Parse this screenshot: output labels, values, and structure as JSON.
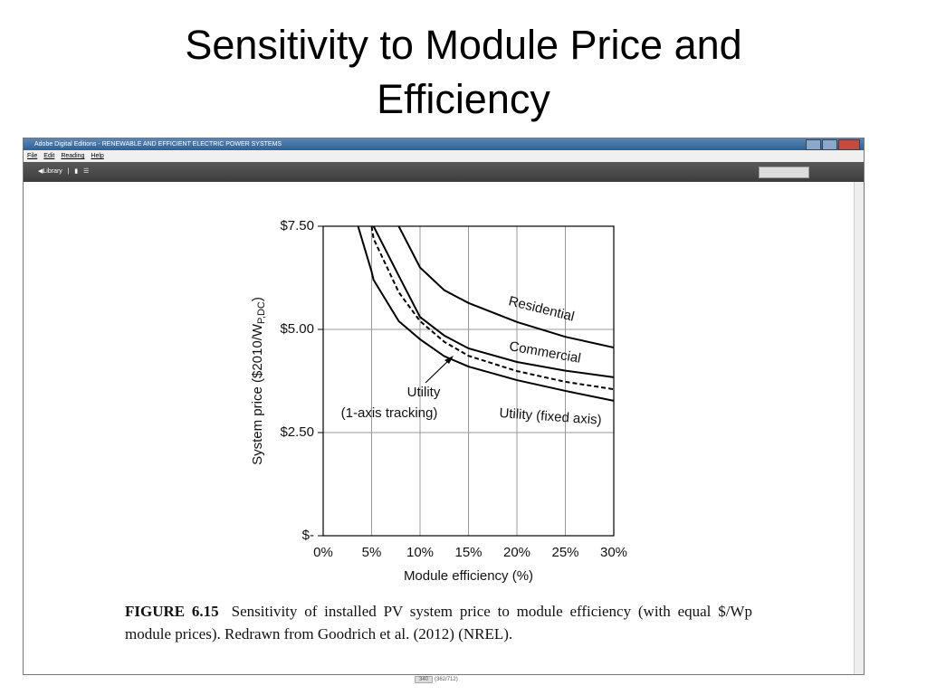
{
  "slide": {
    "title": "Sensitivity to Module Price and Efficiency"
  },
  "window": {
    "title": "Adobe Digital Editions - RENEWABLE AND EFFICIENT ELECTRIC POWER SYSTEMS",
    "menu": [
      "File",
      "Edit",
      "Reading",
      "Help"
    ],
    "library": "Library",
    "page_indicator": "340",
    "page_count": "(362/712)"
  },
  "chart_data": {
    "type": "line",
    "xlabel": "Module efficiency (%)",
    "ylabel": {
      "text": "System price ($2010/W",
      "sub": "P,DC",
      "end": ")"
    },
    "x": [
      3.6,
      5,
      5.2,
      7.8,
      10,
      12.5,
      15,
      20,
      25,
      30
    ],
    "series": [
      {
        "name": "Residential",
        "color": "#000000",
        "values": [
          null,
          null,
          null,
          7.5,
          6.5,
          5.95,
          5.64,
          5.18,
          4.82,
          4.56
        ]
      },
      {
        "name": "Commercial",
        "color": "#000000",
        "values": [
          null,
          null,
          7.5,
          6.3,
          5.3,
          4.85,
          4.54,
          4.21,
          4.0,
          3.84
        ]
      },
      {
        "label_lines": [
          "Utility",
          "(1-axis tracking)"
        ],
        "color": "#000000",
        "dash": true,
        "values": [
          null,
          7.5,
          7.2,
          5.9,
          5.2,
          4.7,
          4.36,
          3.99,
          3.73,
          3.55
        ]
      },
      {
        "name": "Utility (fixed axis)",
        "color": "#000000",
        "values": [
          7.5,
          6.4,
          6.2,
          5.2,
          4.76,
          4.35,
          4.1,
          3.77,
          3.51,
          3.27
        ]
      }
    ],
    "xlim": [
      0,
      30
    ],
    "ylim": [
      0,
      7.5
    ],
    "xticks": [
      {
        "value": 0,
        "label": "0%"
      },
      {
        "value": 5,
        "label": "5%"
      },
      {
        "value": 10,
        "label": "10%"
      },
      {
        "value": 15,
        "label": "15%"
      },
      {
        "value": 20,
        "label": "20%"
      },
      {
        "value": 25,
        "label": "25%"
      },
      {
        "value": 30,
        "label": "30%"
      }
    ],
    "yticks": [
      {
        "value": 0,
        "label": "$-"
      },
      {
        "value": 2.5,
        "label": "$2.50"
      },
      {
        "value": 5,
        "label": "$5.00"
      },
      {
        "value": 7.5,
        "label": "$7.50"
      }
    ],
    "grid": true
  },
  "caption": {
    "label": "FIGURE 6.15",
    "text": "Sensitivity of installed PV system price to module efficiency (with equal $/Wp module prices). Redrawn from Goodrich et al. (2012) (NREL)."
  }
}
